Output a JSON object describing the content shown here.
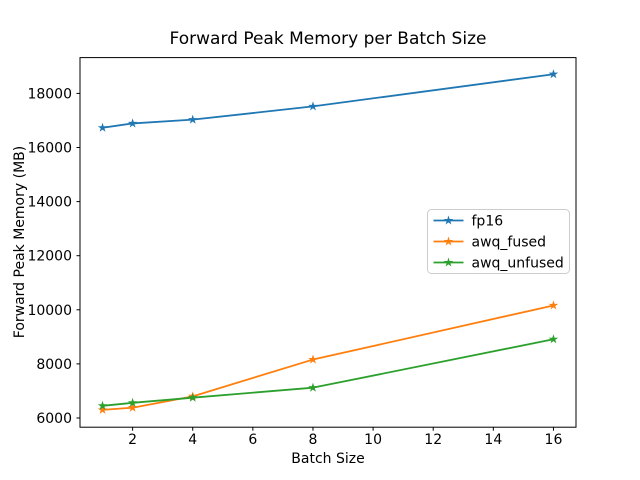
{
  "figure": {
    "background": "#ffffff"
  },
  "chart_data": {
    "type": "line",
    "title": "Forward Peak Memory per Batch Size",
    "xlabel": "Batch Size",
    "ylabel": "Forward Peak Memory (MB)",
    "x": [
      1,
      2,
      4,
      8,
      16
    ],
    "series": [
      {
        "name": "fp16",
        "color": "#1f77b4",
        "marker": "star",
        "values": [
          16730,
          16890,
          17030,
          17520,
          18710
        ]
      },
      {
        "name": "awq_fused",
        "color": "#ff7f0e",
        "marker": "star",
        "values": [
          6300,
          6380,
          6800,
          8160,
          10160
        ]
      },
      {
        "name": "awq_unfused",
        "color": "#2ca02c",
        "marker": "star",
        "values": [
          6450,
          6560,
          6750,
          7120,
          8910
        ]
      }
    ],
    "xticks": [
      2,
      4,
      6,
      8,
      10,
      12,
      14,
      16
    ],
    "yticks": [
      6000,
      8000,
      10000,
      12000,
      14000,
      16000,
      18000
    ],
    "xlim": [
      0.25,
      16.75
    ],
    "ylim": [
      5659,
      19324
    ],
    "grid": false,
    "legend": {
      "position": "center right",
      "entries": [
        "fp16",
        "awq_fused",
        "awq_unfused"
      ]
    }
  }
}
